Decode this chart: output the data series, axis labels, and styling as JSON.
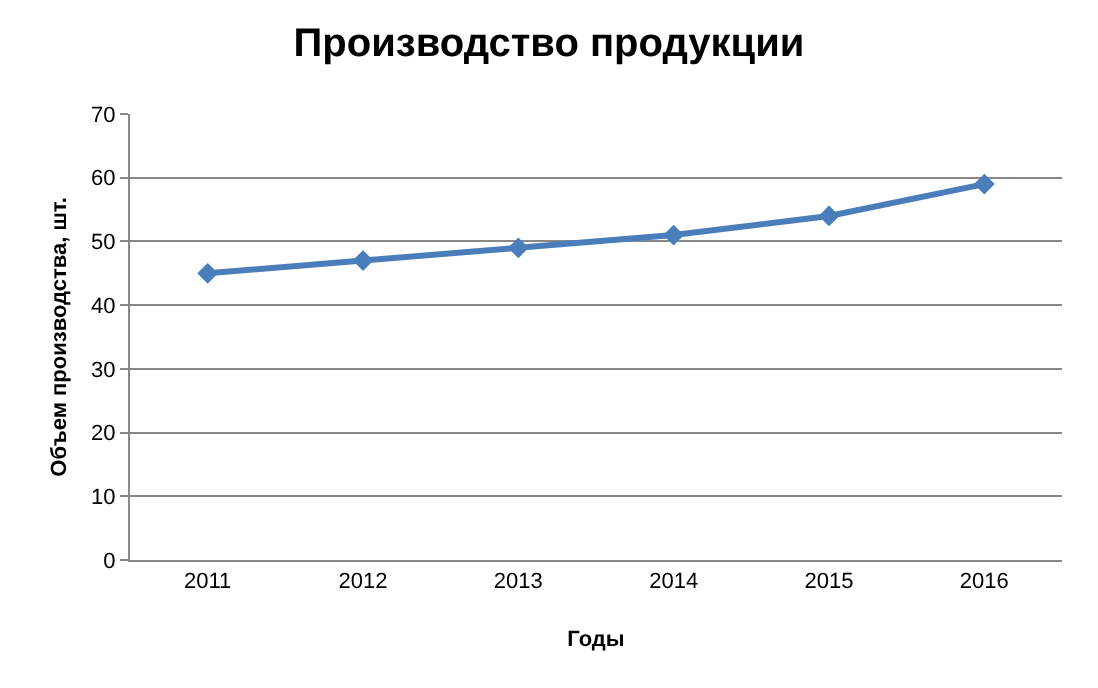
{
  "chart_data": {
    "type": "line",
    "title": "Производство продукции",
    "xlabel": "Годы",
    "ylabel": "Объем производства, шт.",
    "categories": [
      "2011",
      "2012",
      "2013",
      "2014",
      "2015",
      "2016"
    ],
    "series": [
      {
        "color": "#4a7ebb",
        "values": [
          45,
          47,
          49,
          51,
          54,
          59
        ]
      }
    ],
    "ylim": [
      0,
      70
    ],
    "yticks": [
      0,
      10,
      20,
      30,
      40,
      50,
      60,
      70
    ],
    "grid": "y",
    "marker": "diamond",
    "line_style": "solid"
  }
}
